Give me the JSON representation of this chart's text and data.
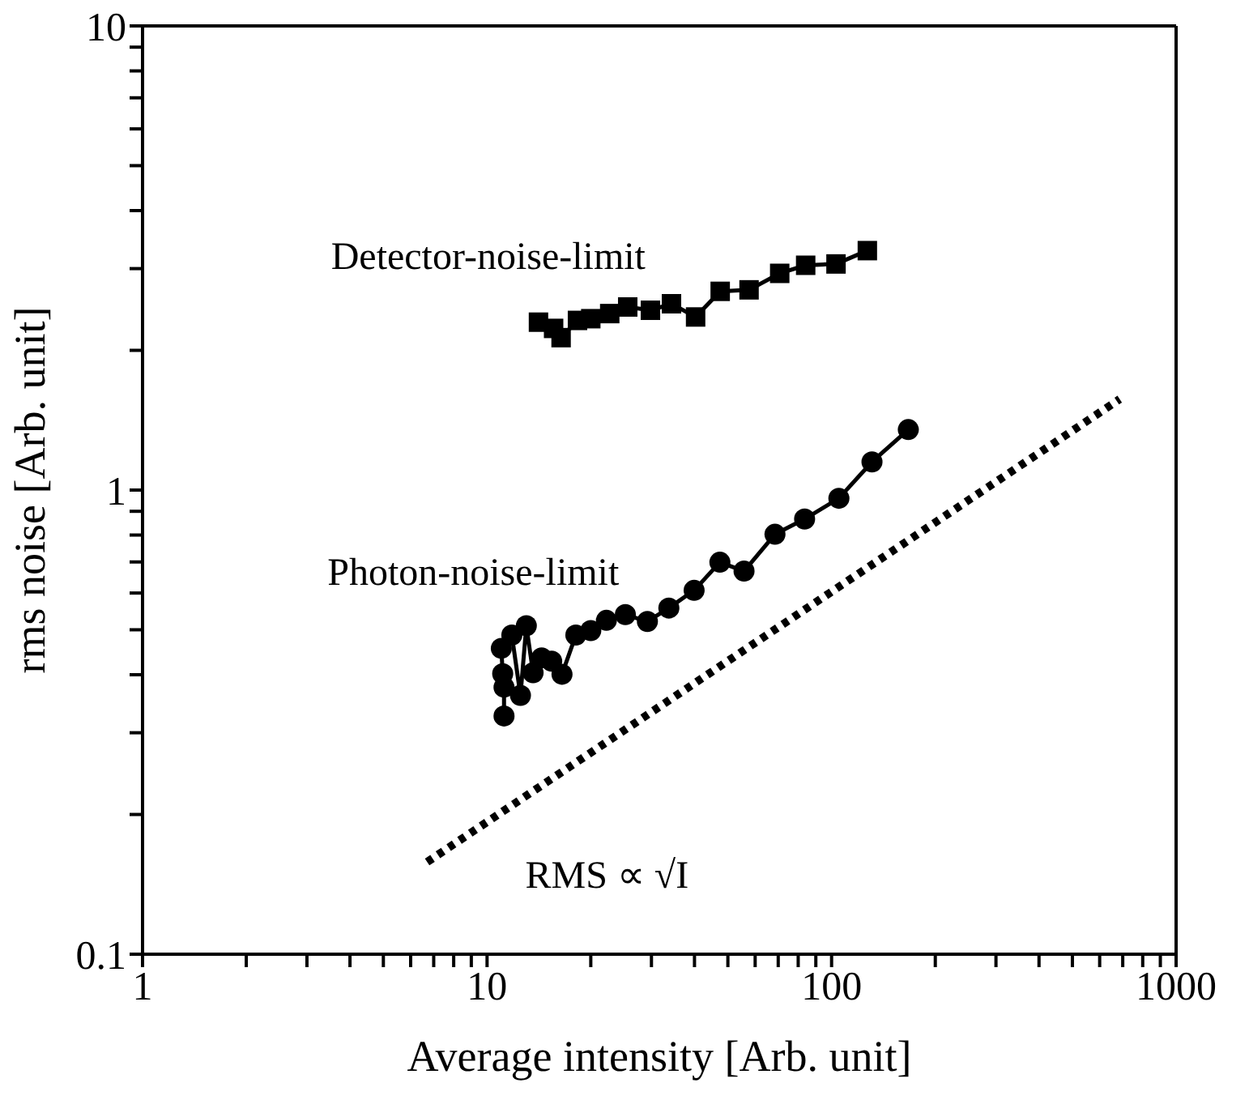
{
  "chart_data": {
    "type": "line",
    "xlabel": "Average intensity [Arb. unit]",
    "ylabel": "rms noise [Arb. unit]",
    "log": "xy",
    "xlim": [
      1,
      1000
    ],
    "ylim": [
      0.1,
      10
    ],
    "xticks": [
      1,
      {
        "value": 2,
        "label": null
      },
      {
        "value": 3,
        "label": null
      },
      {
        "value": 4,
        "label": null
      },
      {
        "value": 5,
        "label": null
      },
      {
        "value": 6,
        "label": null
      },
      {
        "value": 7,
        "label": null
      },
      {
        "value": 8,
        "label": null
      },
      {
        "value": 9,
        "label": null
      },
      10,
      {
        "value": 20,
        "label": null
      },
      {
        "value": 30,
        "label": null
      },
      {
        "value": 40,
        "label": null
      },
      {
        "value": 50,
        "label": null
      },
      {
        "value": 60,
        "label": null
      },
      {
        "value": 70,
        "label": null
      },
      {
        "value": 80,
        "label": null
      },
      {
        "value": 90,
        "label": null
      },
      100,
      {
        "value": 200,
        "label": null
      },
      {
        "value": 300,
        "label": null
      },
      {
        "value": 400,
        "label": null
      },
      {
        "value": 500,
        "label": null
      },
      {
        "value": 600,
        "label": null
      },
      {
        "value": 700,
        "label": null
      },
      {
        "value": 800,
        "label": null
      },
      {
        "value": 900,
        "label": null
      },
      1000
    ],
    "yticks": [
      0.1,
      {
        "value": 0.2,
        "label": null
      },
      {
        "value": 0.3,
        "label": null
      },
      {
        "value": 0.4,
        "label": null
      },
      {
        "value": 0.5,
        "label": null
      },
      {
        "value": 0.6,
        "label": null
      },
      {
        "value": 0.7,
        "label": null
      },
      {
        "value": 0.8,
        "label": null
      },
      {
        "value": 0.9,
        "label": null
      },
      1,
      {
        "value": 2,
        "label": null
      },
      {
        "value": 3,
        "label": null
      },
      {
        "value": 4,
        "label": null
      },
      {
        "value": 5,
        "label": null
      },
      {
        "value": 6,
        "label": null
      },
      {
        "value": 7,
        "label": null
      },
      {
        "value": 8,
        "label": null
      },
      {
        "value": 9,
        "label": null
      },
      10
    ],
    "series": [
      {
        "name": "Detector-noise-limit",
        "color": "#000000",
        "marker": "square",
        "line_style": "solid",
        "x": [
          14.1,
          15.6,
          16.4,
          18.3,
          20.0,
          22.7,
          25.6,
          29.8,
          34.3,
          40.3,
          47.5,
          57.6,
          70.7,
          84.1,
          103,
          127
        ],
        "values": [
          2.3,
          2.23,
          2.13,
          2.32,
          2.34,
          2.4,
          2.48,
          2.44,
          2.52,
          2.36,
          2.68,
          2.7,
          2.93,
          3.05,
          3.07,
          3.28
        ]
      },
      {
        "name": "Photon-noise-limit",
        "color": "#000000",
        "marker": "circle",
        "line_style": "solid",
        "x": [
          11.2,
          11.2,
          11.1,
          11.0,
          11.8,
          12.5,
          13.0,
          13.6,
          14.4,
          15.4,
          16.5,
          18.1,
          20.0,
          22.2,
          25.2,
          29.2,
          33.7,
          39.9,
          47.4,
          55.7,
          68.5,
          83.5,
          105,
          131,
          167
        ],
        "values": [
          0.326,
          0.376,
          0.402,
          0.456,
          0.487,
          0.361,
          0.51,
          0.404,
          0.435,
          0.428,
          0.401,
          0.487,
          0.498,
          0.524,
          0.539,
          0.521,
          0.557,
          0.608,
          0.699,
          0.669,
          0.803,
          0.866,
          0.96,
          1.15,
          1.35
        ]
      },
      {
        "name": "RMS ∝ √I",
        "color": "#000000",
        "marker": "none",
        "line_style": "dotted",
        "x": [
          6.7,
          686
        ],
        "values": [
          0.158,
          1.57
        ]
      }
    ]
  }
}
